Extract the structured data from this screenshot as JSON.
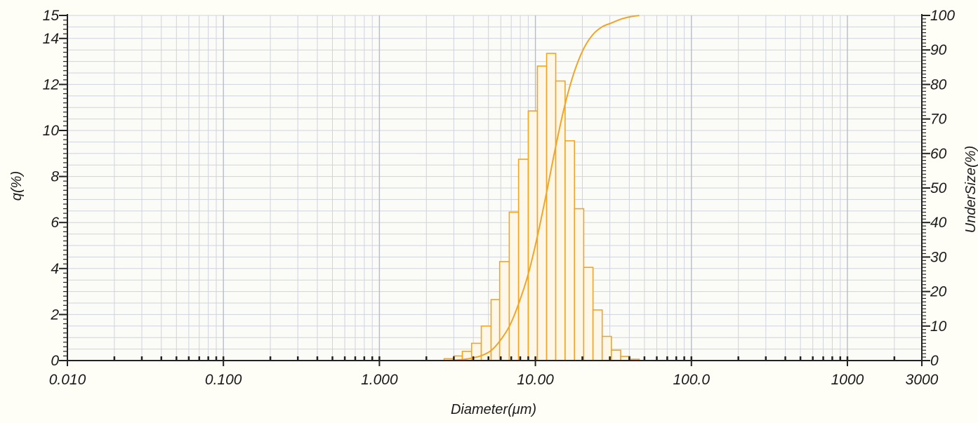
{
  "chart_data": {
    "type": "bar",
    "title": "",
    "xlabel": "Diameter(μm)",
    "ylabel": "q(%)",
    "y2label": "UnderSize(%)",
    "x_scale": "log",
    "xlim": [
      0.01,
      3000
    ],
    "ylim": [
      0,
      15
    ],
    "y2lim": [
      0,
      100
    ],
    "grid": true,
    "legend": "none",
    "x_tick_labels": [
      {
        "value": 0.01,
        "label": "0.010"
      },
      {
        "value": 0.1,
        "label": "0.100"
      },
      {
        "value": 1,
        "label": "1.000"
      },
      {
        "value": 10,
        "label": "10.00"
      },
      {
        "value": 100,
        "label": "100.0"
      },
      {
        "value": 1000,
        "label": "1000"
      },
      {
        "value": 3000,
        "label": "3000"
      }
    ],
    "y_tick_labels": [
      {
        "value": 0,
        "label": "0"
      },
      {
        "value": 2,
        "label": "2"
      },
      {
        "value": 4,
        "label": "4"
      },
      {
        "value": 6,
        "label": "6"
      },
      {
        "value": 8,
        "label": "8"
      },
      {
        "value": 10,
        "label": "10"
      },
      {
        "value": 12,
        "label": "12"
      },
      {
        "value": 14,
        "label": "14"
      },
      {
        "value": 15,
        "label": "15"
      }
    ],
    "y2_tick_labels": [
      {
        "value": 0,
        "label": "0"
      },
      {
        "value": 10,
        "label": "10"
      },
      {
        "value": 20,
        "label": "20"
      },
      {
        "value": 30,
        "label": "30"
      },
      {
        "value": 40,
        "label": "40"
      },
      {
        "value": 50,
        "label": "50"
      },
      {
        "value": 60,
        "label": "60"
      },
      {
        "value": 70,
        "label": "70"
      },
      {
        "value": 80,
        "label": "80"
      },
      {
        "value": 90,
        "label": "90"
      },
      {
        "value": 100,
        "label": "100"
      }
    ],
    "colors": {
      "bars": "#f0a526",
      "curve": "#f0a526",
      "grid": "#cfd3dc",
      "axis": "#222222"
    },
    "series": [
      {
        "kind": "bar",
        "axis": "left",
        "bins": [
          {
            "x0": 2.6,
            "x1": 3.0,
            "q": 0.08
          },
          {
            "x0": 3.0,
            "x1": 3.4,
            "q": 0.2
          },
          {
            "x0": 3.4,
            "x1": 3.9,
            "q": 0.4
          },
          {
            "x0": 3.9,
            "x1": 4.5,
            "q": 0.75
          },
          {
            "x0": 4.5,
            "x1": 5.2,
            "q": 1.5
          },
          {
            "x0": 5.2,
            "x1": 5.9,
            "q": 2.65
          },
          {
            "x0": 5.9,
            "x1": 6.8,
            "q": 4.3
          },
          {
            "x0": 6.8,
            "x1": 7.8,
            "q": 6.45
          },
          {
            "x0": 7.8,
            "x1": 9.0,
            "q": 8.75
          },
          {
            "x0": 9.0,
            "x1": 10.3,
            "q": 10.85
          },
          {
            "x0": 10.3,
            "x1": 11.8,
            "q": 12.8
          },
          {
            "x0": 11.8,
            "x1": 13.5,
            "q": 13.35
          },
          {
            "x0": 13.5,
            "x1": 15.5,
            "q": 12.15
          },
          {
            "x0": 15.5,
            "x1": 17.8,
            "q": 9.55
          },
          {
            "x0": 17.8,
            "x1": 20.4,
            "q": 6.6
          },
          {
            "x0": 20.4,
            "x1": 23.4,
            "q": 4.05
          },
          {
            "x0": 23.4,
            "x1": 26.8,
            "q": 2.2
          },
          {
            "x0": 26.8,
            "x1": 30.7,
            "q": 1.05
          },
          {
            "x0": 30.7,
            "x1": 35.2,
            "q": 0.45
          },
          {
            "x0": 35.2,
            "x1": 40.4,
            "q": 0.18
          },
          {
            "x0": 40.4,
            "x1": 46.3,
            "q": 0.06
          }
        ]
      },
      {
        "kind": "line",
        "axis": "right",
        "points": [
          [
            2.6,
            0
          ],
          [
            3.0,
            0.1
          ],
          [
            3.4,
            0.3
          ],
          [
            3.9,
            0.7
          ],
          [
            4.5,
            1.4
          ],
          [
            5.2,
            2.9
          ],
          [
            5.9,
            5.6
          ],
          [
            6.8,
            9.9
          ],
          [
            7.8,
            16.4
          ],
          [
            9.0,
            25.1
          ],
          [
            10.3,
            36.0
          ],
          [
            11.8,
            48.8
          ],
          [
            13.5,
            62.1
          ],
          [
            15.5,
            74.3
          ],
          [
            17.8,
            83.8
          ],
          [
            20.4,
            90.4
          ],
          [
            23.4,
            94.5
          ],
          [
            26.8,
            96.7
          ],
          [
            30.7,
            97.8
          ],
          [
            35.2,
            98.9
          ],
          [
            40.4,
            99.6
          ],
          [
            46.3,
            100
          ]
        ]
      }
    ]
  }
}
